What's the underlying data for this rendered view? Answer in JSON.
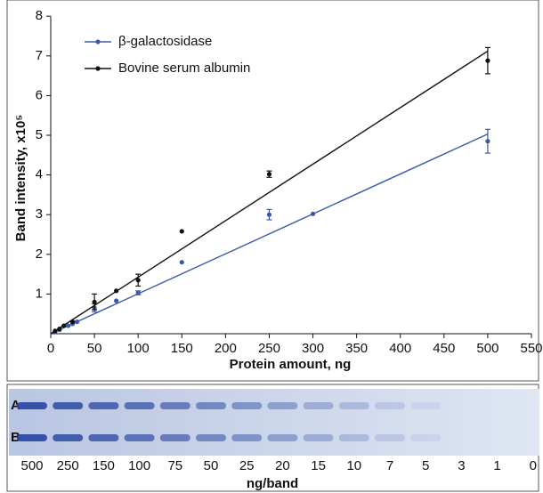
{
  "chart_data": {
    "type": "scatter",
    "xlabel": "Protein amount, ng",
    "ylabel": "Band intensity, x10⁵",
    "xlim": [
      0,
      550
    ],
    "xticks": [
      0,
      50,
      100,
      150,
      200,
      250,
      300,
      350,
      400,
      450,
      500,
      550
    ],
    "ylim": [
      0,
      8
    ],
    "yticks": [
      1,
      2,
      3,
      4,
      5,
      6,
      7,
      8
    ],
    "legend": "upper left",
    "series": [
      {
        "name": "β-galactosidase",
        "color": "#3a5aa8",
        "x": [
          5,
          10,
          20,
          25,
          30,
          50,
          75,
          100,
          150,
          250,
          300,
          500
        ],
        "values": [
          0.05,
          0.1,
          0.2,
          0.25,
          0.3,
          0.65,
          0.83,
          1.03,
          1.8,
          3.0,
          3.02,
          4.85
        ],
        "errors": [
          null,
          null,
          null,
          null,
          null,
          0.1,
          null,
          0.05,
          null,
          0.13,
          null,
          0.3
        ],
        "fit_x": [
          0,
          500
        ],
        "fit_values": [
          0,
          5.03
        ]
      },
      {
        "name": "Bovine serum albumin",
        "color": "#111111",
        "x": [
          5,
          10,
          15,
          25,
          50,
          75,
          100,
          150,
          250,
          500
        ],
        "values": [
          0.07,
          0.12,
          0.2,
          0.3,
          0.8,
          1.08,
          1.35,
          2.58,
          4.02,
          6.88
        ],
        "errors": [
          null,
          null,
          null,
          null,
          0.2,
          null,
          0.15,
          null,
          0.08,
          0.33
        ],
        "fit_x": [
          0,
          500
        ],
        "fit_values": [
          0,
          7.12
        ]
      }
    ]
  },
  "gel": {
    "row_labels": [
      "A",
      "B"
    ],
    "lanes": [
      500,
      250,
      150,
      100,
      75,
      50,
      25,
      20,
      15,
      10,
      7,
      5,
      3,
      1,
      0
    ],
    "xlabel": "ng/band"
  }
}
